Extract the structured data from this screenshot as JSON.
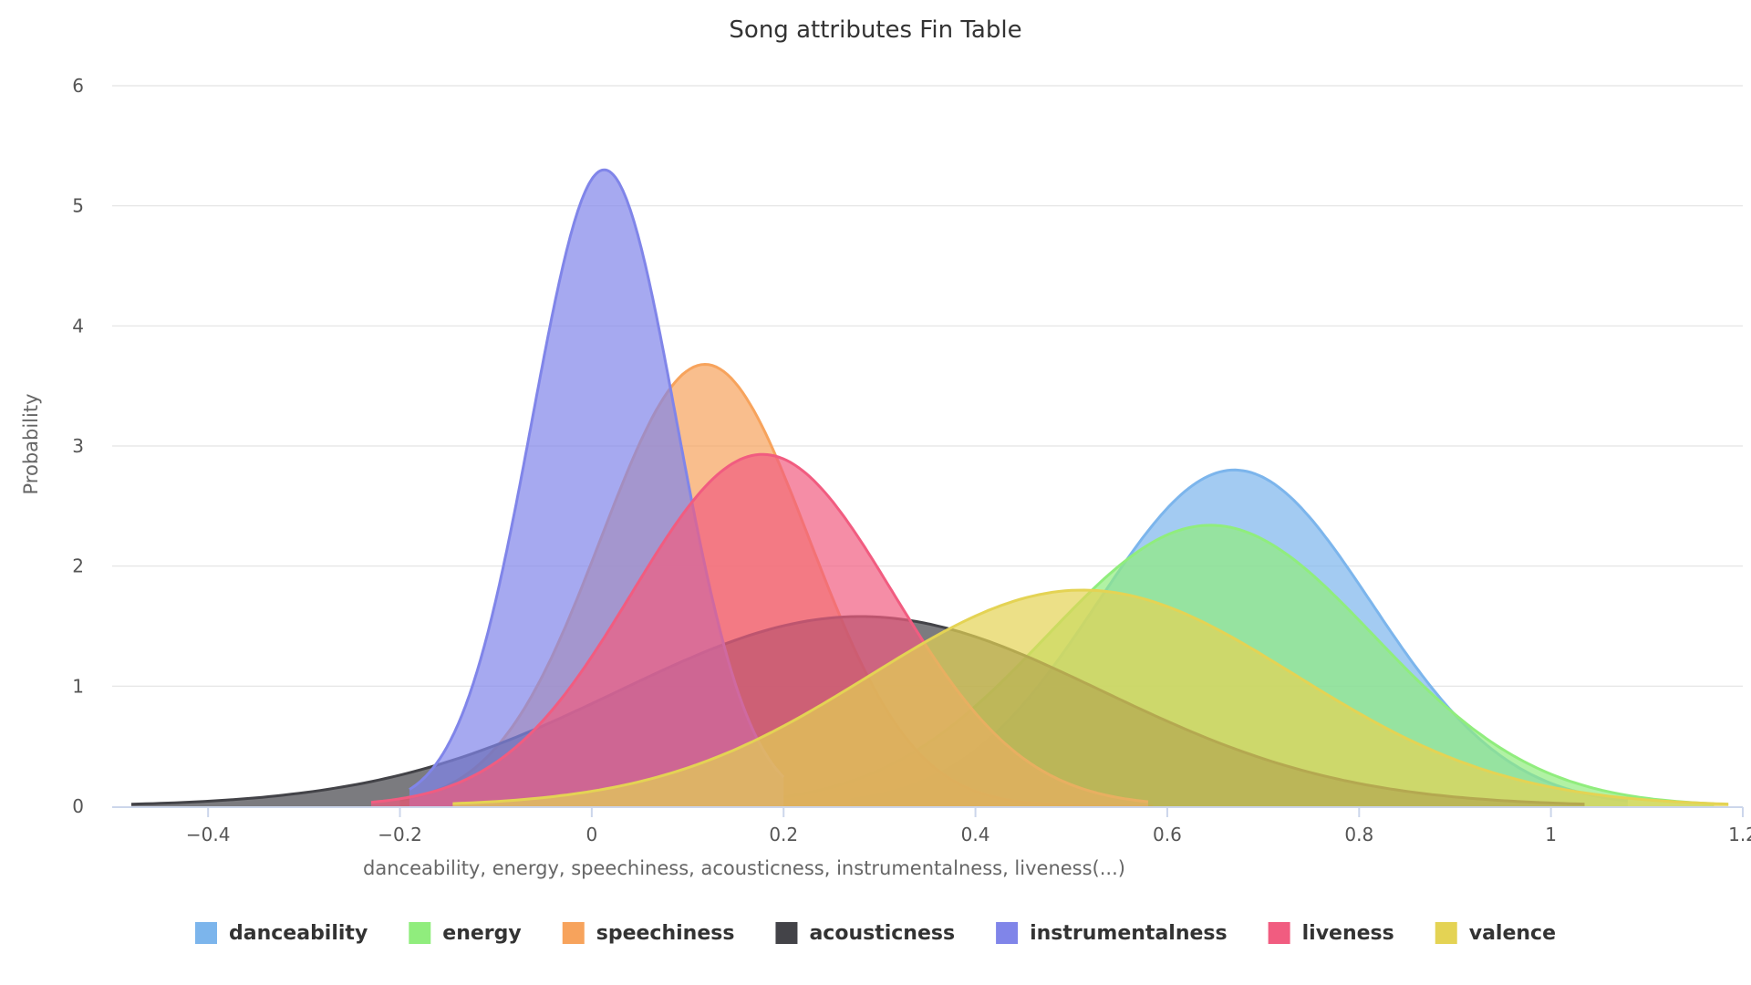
{
  "chart_data": {
    "type": "area",
    "title": "Song attributes Fin Table",
    "xlabel": "danceability, energy, speechiness, acousticness, instrumentalness, liveness(...)",
    "ylabel": "Probability",
    "xlim": [
      -0.5,
      1.2
    ],
    "ylim": [
      0,
      6
    ],
    "x_ticks": [
      -0.4,
      -0.2,
      0,
      0.2,
      0.4,
      0.6,
      0.8,
      1,
      1.2
    ],
    "x_tick_labels": [
      "−0.4",
      "−0.2",
      "0",
      "0.2",
      "0.4",
      "0.6",
      "0.8",
      "1",
      "1.2"
    ],
    "y_ticks": [
      0,
      1,
      2,
      3,
      4,
      5,
      6
    ],
    "y_tick_labels": [
      "0",
      "1",
      "2",
      "3",
      "4",
      "5",
      "6"
    ],
    "grid": true,
    "legend_position": "bottom-center",
    "series": [
      {
        "name": "danceability",
        "color": "#7cb5ec",
        "mean": 0.67,
        "peak": 2.8,
        "range": [
          0.27,
          1.08
        ]
      },
      {
        "name": "energy",
        "color": "#90ed7d",
        "mean": 0.645,
        "peak": 2.34,
        "range": [
          0.2,
          1.17
        ]
      },
      {
        "name": "speechiness",
        "color": "#f7a35c",
        "mean": 0.118,
        "peak": 3.68,
        "range": [
          -0.2,
          0.585
        ]
      },
      {
        "name": "acousticness",
        "color": "#434348",
        "mean": 0.28,
        "peak": 1.58,
        "range": [
          -0.48,
          1.035
        ]
      },
      {
        "name": "instrumentalness",
        "color": "#8085e9",
        "mean": 0.013,
        "peak": 5.3,
        "range": [
          -0.19,
          0.2
        ]
      },
      {
        "name": "liveness",
        "color": "#f15c80",
        "mean": 0.178,
        "peak": 2.93,
        "range": [
          -0.23,
          0.58
        ]
      },
      {
        "name": "valence",
        "color": "#e4d354",
        "mean": 0.512,
        "peak": 1.8,
        "range": [
          -0.145,
          1.185
        ]
      }
    ]
  }
}
